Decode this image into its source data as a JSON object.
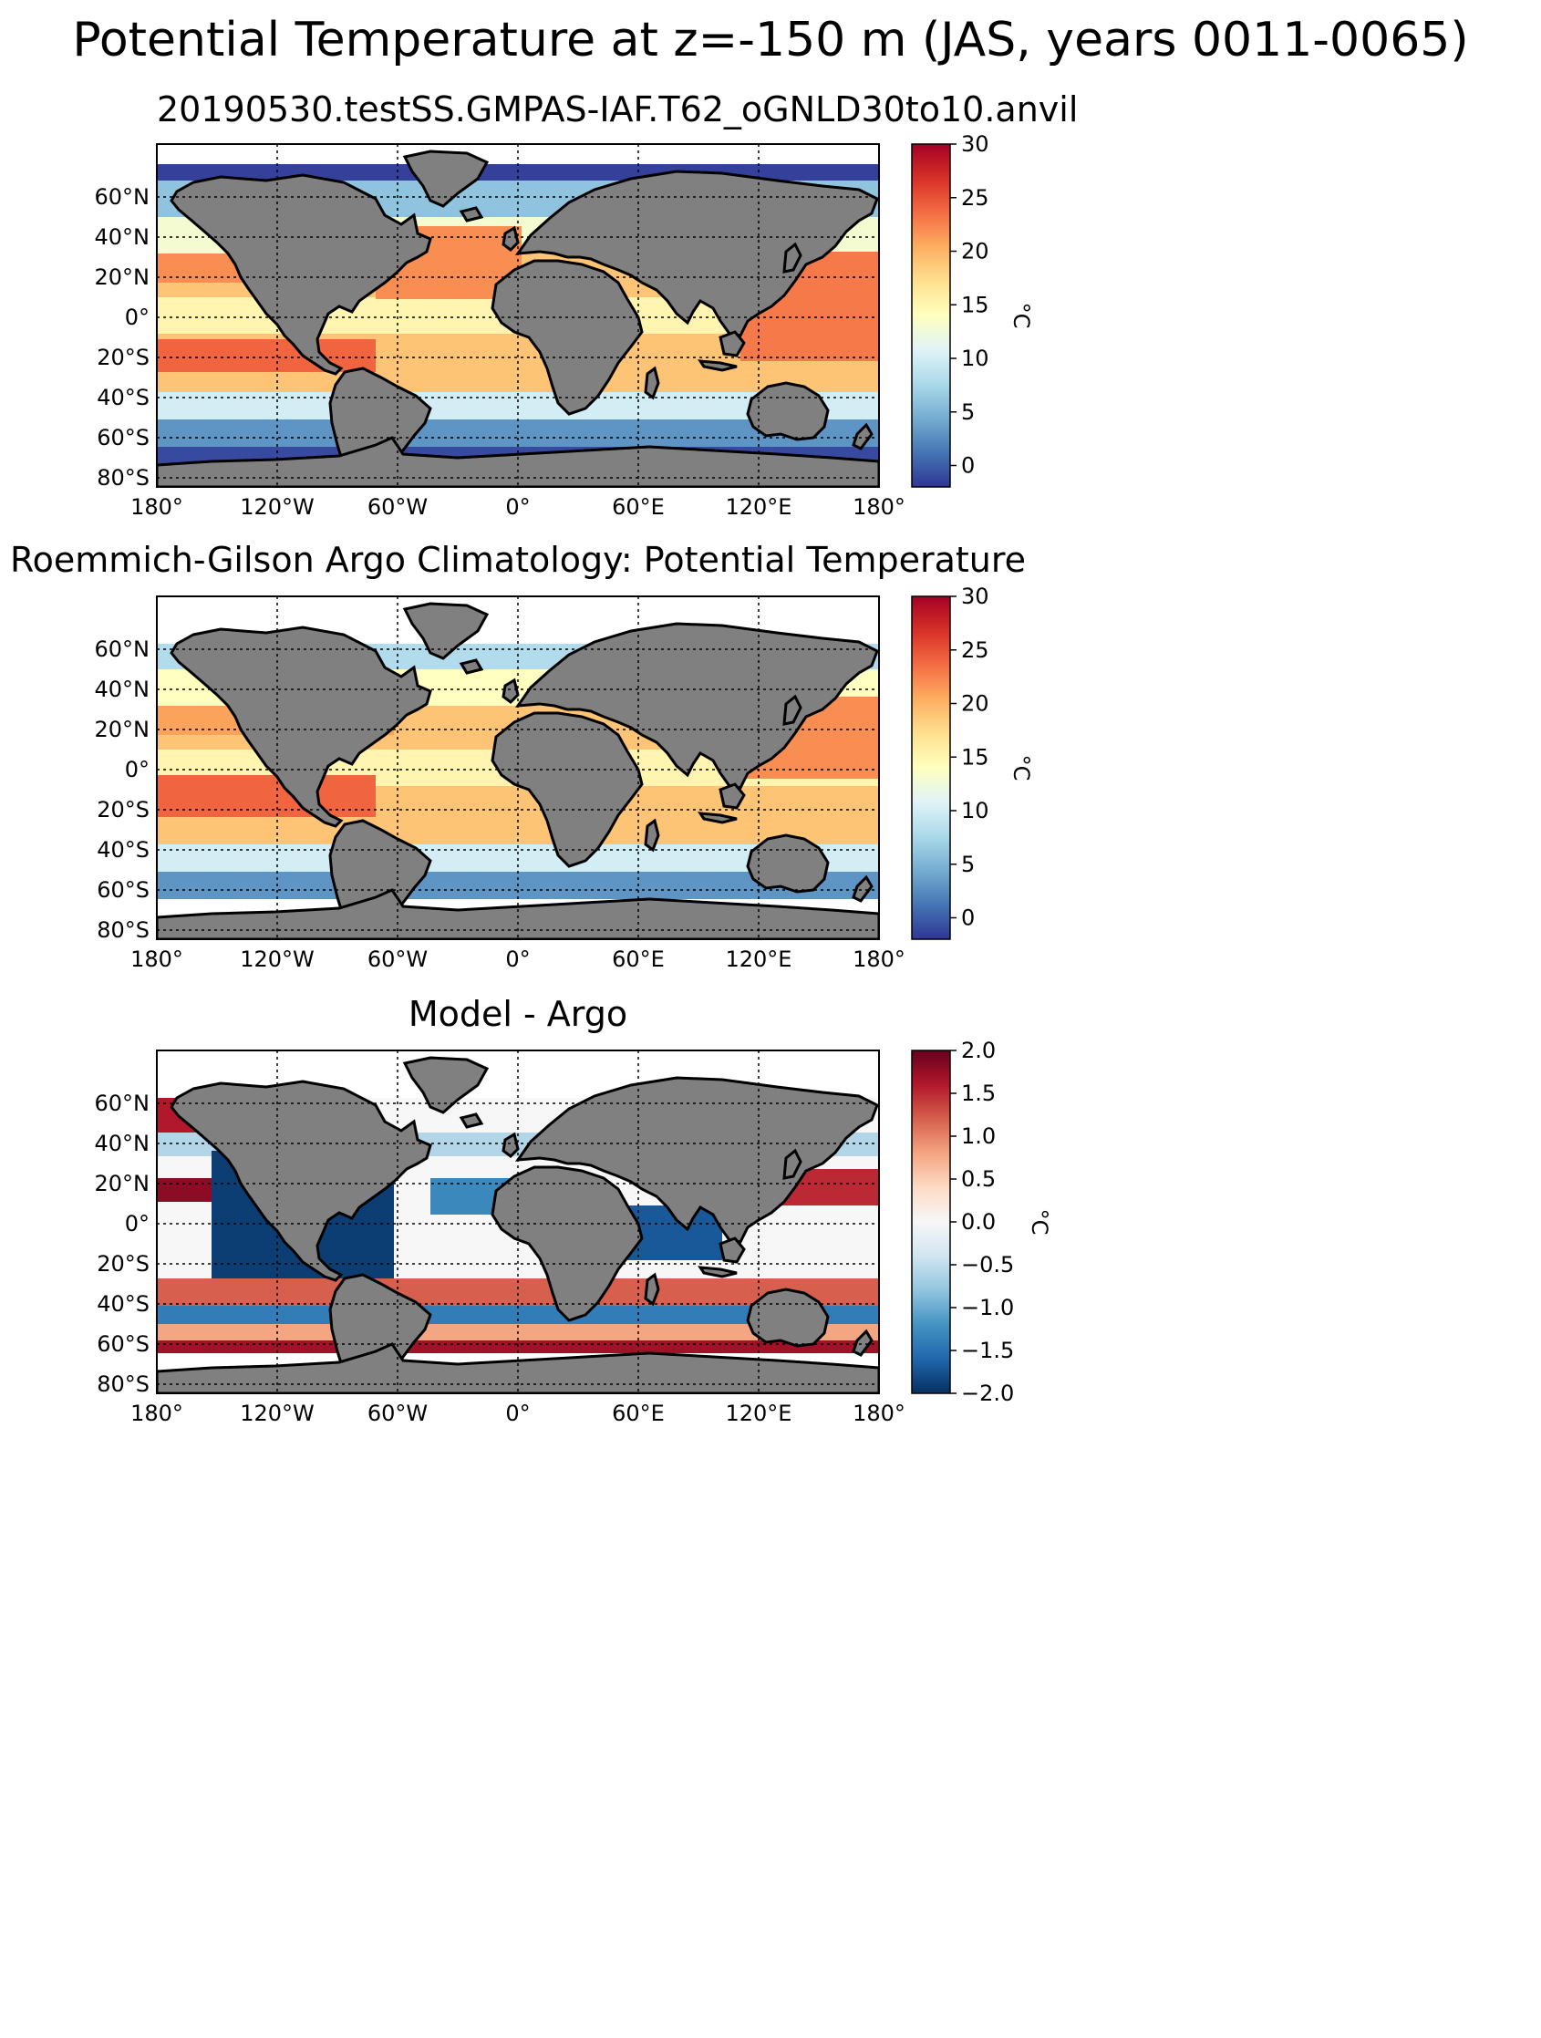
{
  "figure": {
    "suptitle": "Potential Temperature at z=-150 m (JAS, years 0011-0065)"
  },
  "lon_ticks": [
    "180°",
    "120°W",
    "60°W",
    "0°",
    "60°E",
    "120°E",
    "180°"
  ],
  "lat_ticks": [
    "60°N",
    "40°N",
    "20°N",
    "0°",
    "20°S",
    "40°S",
    "60°S",
    "80°S"
  ],
  "colors": {
    "land": "#808080",
    "rdylbu_r": [
      "#313695",
      "#4575b4",
      "#74add1",
      "#abd9e9",
      "#e0f3f8",
      "#ffffbf",
      "#fee090",
      "#fdae61",
      "#f46d43",
      "#d73027",
      "#a50026"
    ],
    "rdbu_r": [
      "#053061",
      "#2166ac",
      "#4393c3",
      "#92c5de",
      "#d1e5f0",
      "#f7f7f7",
      "#fddbc7",
      "#f4a582",
      "#d6604d",
      "#b2182b",
      "#67001f"
    ]
  },
  "chart_data": [
    {
      "type": "heatmap",
      "title": "20190530.testSS.GMPAS-IAF.T62_oGNLD30to10.anvil",
      "colormap": "RdYlBu_r",
      "colorbar": {
        "label": "°C",
        "range": [
          -2,
          30
        ],
        "ticks": [
          "30",
          "25",
          "20",
          "15",
          "10",
          "5",
          "0"
        ]
      }
    },
    {
      "type": "heatmap",
      "title": "Roemmich-Gilson Argo Climatology: Potential Temperature",
      "colormap": "RdYlBu_r",
      "colorbar": {
        "label": "°C",
        "range": [
          -2,
          30
        ],
        "ticks": [
          "30",
          "25",
          "20",
          "15",
          "10",
          "5",
          "0"
        ]
      }
    },
    {
      "type": "heatmap",
      "title": "Model - Argo",
      "colormap": "RdBu_r",
      "colorbar": {
        "label": "°C",
        "range": [
          -2.0,
          2.0
        ],
        "ticks": [
          "2.0",
          "1.5",
          "1.0",
          "0.5",
          "0.0",
          "−0.5",
          "−1.0",
          "−1.5",
          "−2.0"
        ]
      }
    }
  ]
}
